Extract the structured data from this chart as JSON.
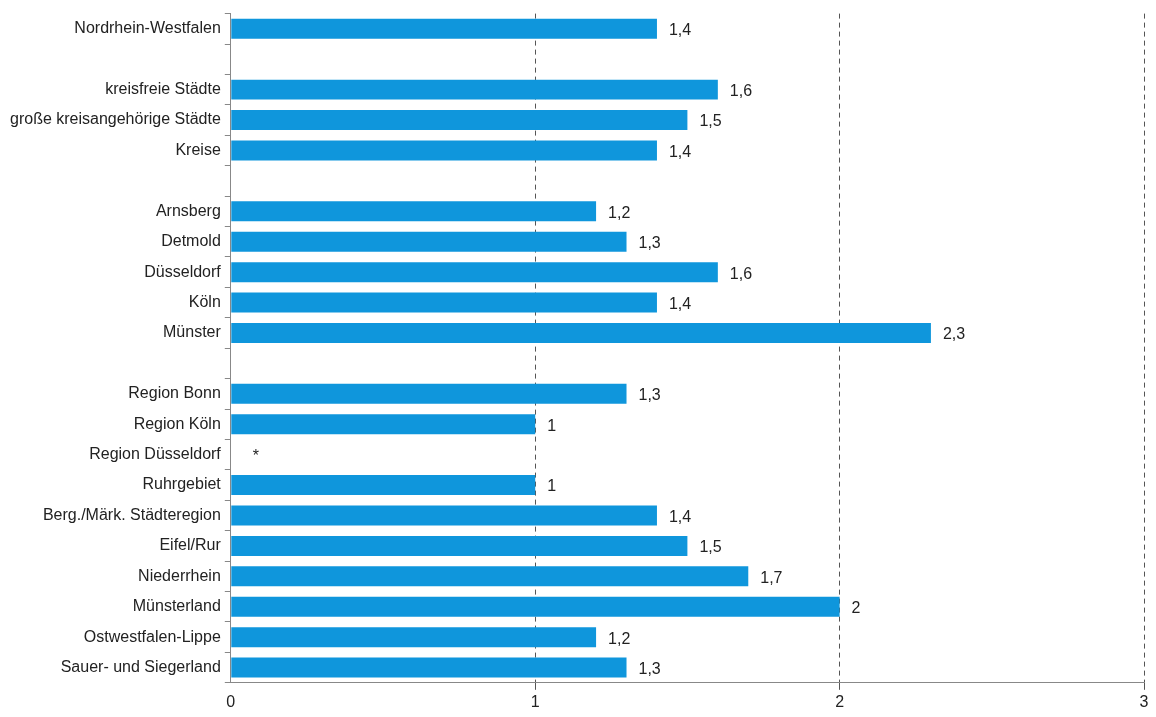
{
  "chart_data": {
    "type": "bar",
    "orientation": "horizontal",
    "categories": [
      "Nordrhein-Westfalen",
      null,
      "kreisfreie Städte",
      "große kreisangehörige Städte",
      "Kreise",
      null,
      "Arnsberg",
      "Detmold",
      "Düsseldorf",
      "Köln",
      "Münster",
      null,
      "Region Bonn",
      "Region Köln",
      "Region Düsseldorf",
      "Ruhrgebiet",
      "Berg./Märk. Städteregion",
      "Eifel/Rur",
      "Niederrhein",
      "Münsterland",
      "Ostwestfalen-Lippe",
      "Sauer- und Siegerland"
    ],
    "values": [
      1.4,
      null,
      1.6,
      1.5,
      1.4,
      null,
      1.2,
      1.3,
      1.6,
      1.4,
      2.3,
      null,
      1.3,
      1,
      null,
      1,
      1.4,
      1.5,
      1.7,
      2,
      1.2,
      1.3
    ],
    "value_labels": [
      "1,4",
      null,
      "1,6",
      "1,5",
      "1,4",
      null,
      "1,2",
      "1,3",
      "1,6",
      "1,4",
      "2,3",
      null,
      "1,3",
      "1",
      "*",
      "1",
      "1,4",
      "1,5",
      "1,7",
      "2",
      "1,2",
      "1,3"
    ],
    "color": "#0f96dc",
    "xlim": [
      0,
      3
    ],
    "xticks": [
      0,
      1,
      2,
      3
    ],
    "grid": "x"
  }
}
